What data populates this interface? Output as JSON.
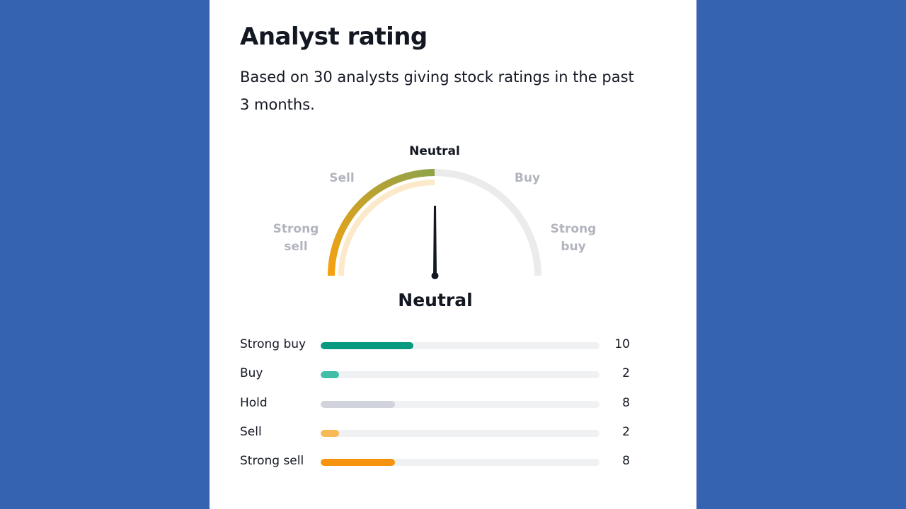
{
  "title": "Analyst rating",
  "subtitle": "Based on 30 analysts giving stock ratings in the past 3 months.",
  "gauge": {
    "labels": {
      "strong_sell": "Strong\nsell",
      "sell": "Sell",
      "neutral": "Neutral",
      "buy": "Buy",
      "strong_buy": "Strong\nbuy"
    },
    "active": "neutral",
    "verdict": "Neutral",
    "needle_fraction": 0.5,
    "colors": {
      "gradient_start": "#f7a10f",
      "gradient_end": "#8fa34a",
      "track": "#ebebeb"
    }
  },
  "ratings": [
    {
      "label": "Strong buy",
      "count": 10,
      "color": "#089981"
    },
    {
      "label": "Buy",
      "count": 2,
      "color": "#42bda8"
    },
    {
      "label": "Hold",
      "count": 8,
      "color": "#d1d4dc"
    },
    {
      "label": "Sell",
      "count": 2,
      "color": "#f7b955"
    },
    {
      "label": "Strong sell",
      "count": 8,
      "color": "#f7930f"
    }
  ],
  "max_count": 30
}
